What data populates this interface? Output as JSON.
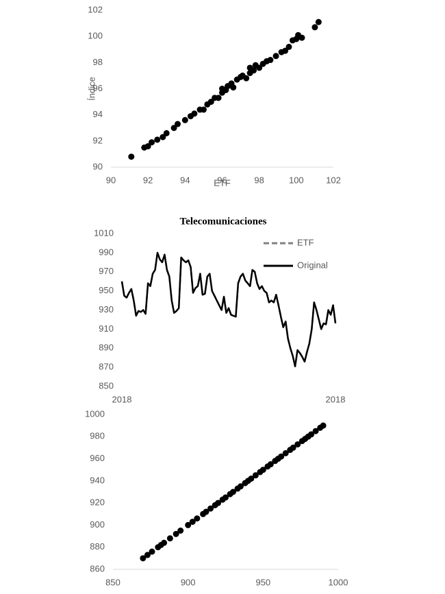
{
  "chart_data": [
    {
      "type": "scatter",
      "xlabel": "ETF",
      "ylabel": "Índice",
      "color": "#000000",
      "x": [
        91.1,
        91.8,
        92.0,
        92.2,
        92.5,
        92.8,
        93.0,
        93.4,
        93.6,
        94.0,
        94.3,
        94.5,
        94.8,
        95.0,
        95.2,
        95.4,
        95.6,
        95.8,
        96.0,
        96.0,
        96.2,
        96.3,
        96.5,
        96.6,
        96.8,
        97.0,
        97.1,
        97.3,
        97.5,
        97.5,
        97.7,
        97.8,
        98.0,
        98.2,
        98.4,
        98.6,
        98.9,
        99.2,
        99.4,
        99.6,
        99.8,
        100.0,
        100.3,
        100.1,
        101.0,
        101.2
      ],
      "values": [
        90.8,
        91.5,
        91.6,
        91.9,
        92.1,
        92.3,
        92.6,
        93.0,
        93.3,
        93.6,
        93.9,
        94.1,
        94.4,
        94.4,
        94.8,
        95.0,
        95.3,
        95.3,
        95.7,
        96.0,
        95.9,
        96.2,
        96.4,
        96.1,
        96.7,
        96.9,
        97.0,
        96.8,
        97.2,
        97.6,
        97.4,
        97.8,
        97.6,
        97.9,
        98.1,
        98.2,
        98.5,
        98.8,
        98.9,
        99.2,
        99.7,
        99.8,
        99.9,
        100.1,
        100.7,
        101.1
      ],
      "xlim": [
        90,
        102
      ],
      "xticks": [
        90,
        92,
        94,
        96,
        98,
        100,
        102
      ],
      "ylim": [
        90,
        102
      ],
      "yticks": [
        90,
        92,
        94,
        96,
        98,
        100,
        102
      ]
    },
    {
      "type": "line",
      "title": "Telecomunicaciones",
      "categories": [
        "2018",
        null,
        null,
        null,
        null,
        null,
        null,
        null,
        null,
        null,
        null,
        null,
        null,
        null,
        null,
        null,
        null,
        null,
        null,
        null,
        null,
        null,
        null,
        null,
        null,
        null,
        null,
        null,
        null,
        null,
        null,
        null,
        null,
        null,
        null,
        null,
        null,
        null,
        null,
        null,
        null,
        null,
        null,
        null,
        null,
        null,
        null,
        null,
        null,
        null,
        null,
        null,
        null,
        null,
        null,
        null,
        null,
        null,
        null,
        null,
        null,
        null,
        null,
        null,
        null,
        null,
        null,
        null,
        null,
        null,
        null,
        null,
        null,
        null,
        null,
        null,
        null,
        null,
        null,
        null,
        null,
        null,
        null,
        null,
        null,
        null,
        null,
        null,
        null,
        null,
        "2018"
      ],
      "series": [
        {
          "name": "ETF",
          "color": "#7f7f7f",
          "dash": true,
          "values": [
            960,
            945,
            943,
            948,
            952,
            940,
            924,
            929,
            928,
            930,
            926,
            958,
            955,
            968,
            972,
            990,
            983,
            980,
            988,
            972,
            965,
            940,
            927,
            929,
            932,
            985,
            982,
            980,
            982,
            975,
            948,
            953,
            955,
            968,
            946,
            947,
            965,
            968,
            950,
            945,
            940,
            935,
            930,
            944,
            927,
            932,
            925,
            924,
            923,
            958,
            965,
            968,
            961,
            958,
            955,
            972,
            970,
            958,
            952,
            955,
            950,
            948,
            938,
            940,
            938,
            946,
            935,
            923,
            912,
            918,
            900,
            890,
            882,
            871,
            888,
            885,
            881,
            876,
            886,
            895,
            910,
            938,
            930,
            920,
            910,
            916,
            915,
            930,
            925,
            935,
            916
          ]
        },
        {
          "name": "Original",
          "color": "#000000",
          "values": [
            960,
            945,
            943,
            948,
            952,
            940,
            924,
            929,
            928,
            930,
            926,
            958,
            955,
            968,
            972,
            990,
            983,
            980,
            988,
            972,
            965,
            940,
            927,
            929,
            932,
            985,
            982,
            980,
            982,
            975,
            948,
            953,
            955,
            968,
            946,
            947,
            965,
            968,
            950,
            945,
            940,
            935,
            930,
            944,
            927,
            932,
            925,
            924,
            923,
            958,
            965,
            968,
            961,
            958,
            955,
            972,
            970,
            958,
            952,
            955,
            950,
            948,
            938,
            940,
            938,
            946,
            935,
            923,
            912,
            918,
            900,
            890,
            882,
            871,
            888,
            885,
            881,
            876,
            886,
            895,
            910,
            938,
            930,
            920,
            910,
            916,
            915,
            930,
            925,
            935,
            916
          ]
        }
      ],
      "ylim": [
        850,
        1010
      ],
      "yticks": [
        850,
        870,
        890,
        910,
        930,
        950,
        970,
        990,
        1010
      ]
    },
    {
      "type": "scatter",
      "color": "#000000",
      "x": [
        870,
        873,
        876,
        880,
        882,
        884,
        888,
        892,
        895,
        900,
        903,
        906,
        910,
        912,
        915,
        918,
        920,
        923,
        925,
        928,
        930,
        933,
        935,
        938,
        940,
        942,
        945,
        948,
        950,
        953,
        955,
        958,
        960,
        962,
        965,
        968,
        970,
        973,
        976,
        978,
        980,
        982,
        985,
        988,
        990
      ],
      "values": [
        870,
        873,
        876,
        880,
        882,
        884,
        888,
        892,
        895,
        900,
        903,
        906,
        910,
        912,
        915,
        918,
        920,
        923,
        925,
        928,
        930,
        933,
        935,
        938,
        940,
        942,
        945,
        948,
        950,
        953,
        955,
        958,
        960,
        962,
        965,
        968,
        970,
        973,
        976,
        978,
        980,
        982,
        985,
        988,
        990
      ],
      "xlim": [
        850,
        1000
      ],
      "xticks": [
        850,
        900,
        950,
        1000
      ],
      "ylim": [
        860,
        1000
      ],
      "yticks": [
        860,
        880,
        900,
        920,
        940,
        960,
        980,
        1000
      ]
    }
  ]
}
